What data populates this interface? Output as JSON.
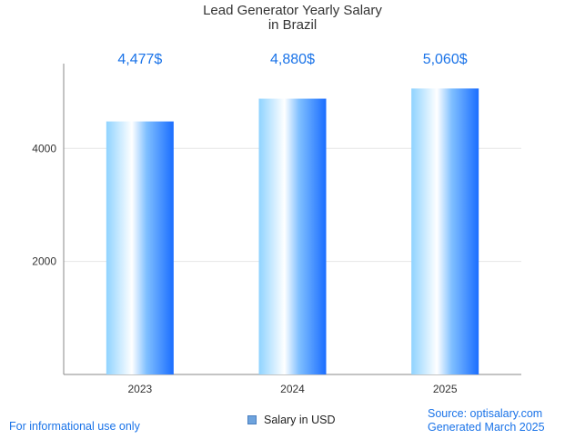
{
  "chart_data": {
    "type": "bar",
    "title_line1": "Lead Generator Yearly Salary",
    "title_line2": "in Brazil",
    "categories": [
      "2023",
      "2024",
      "2025"
    ],
    "values": [
      4477,
      4880,
      5060
    ],
    "value_labels": [
      "4,477$",
      "4,880$",
      "5,060$"
    ],
    "y_ticks": [
      2000,
      4000
    ],
    "y_tick_labels": [
      "2000",
      "4000"
    ],
    "ylim": [
      0,
      5500
    ],
    "grid": true,
    "series": [
      {
        "name": "Salary in USD",
        "values": [
          4477,
          4880,
          5060
        ]
      }
    ],
    "legend": "bottom-center",
    "label_color": "#1a73e8"
  },
  "footer": {
    "disclaimer": "For informational use only",
    "source": "Source: optisalary.com",
    "generated": "Generated March 2025"
  },
  "legend": {
    "label": "Salary in USD"
  }
}
